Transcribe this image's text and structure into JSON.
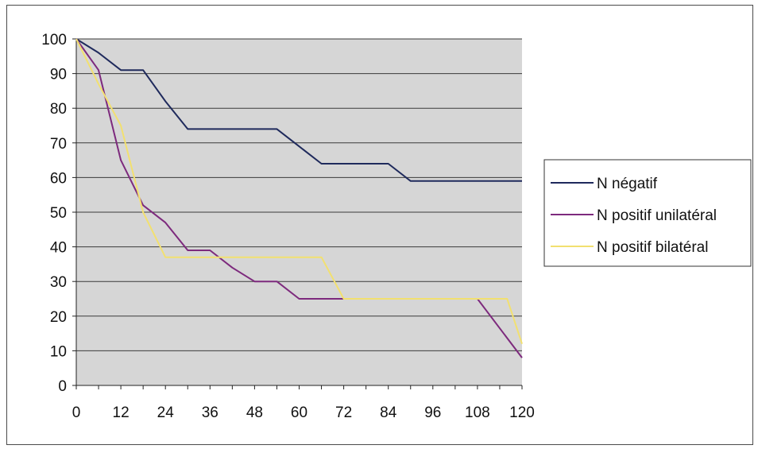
{
  "chart_data": {
    "type": "line",
    "title": "",
    "xlabel": "",
    "ylabel": "",
    "xlim": [
      0,
      120
    ],
    "ylim": [
      0,
      100
    ],
    "x_ticks": [
      "0",
      "12",
      "24",
      "36",
      "48",
      "60",
      "72",
      "84",
      "96",
      "108",
      "120"
    ],
    "y_ticks": [
      "0",
      "10",
      "20",
      "30",
      "40",
      "50",
      "60",
      "70",
      "80",
      "90",
      "100"
    ],
    "grid": "horizontal",
    "legend_position": "right",
    "plot_background": "#d6d6d6",
    "series": [
      {
        "name": "N négatif",
        "color": "#1f2a5c",
        "x": [
          0,
          6,
          12,
          18,
          24,
          30,
          54,
          60,
          66,
          84,
          90,
          120
        ],
        "y": [
          100,
          96,
          91,
          91,
          82,
          74,
          74,
          69,
          64,
          64,
          59,
          59
        ]
      },
      {
        "name": "N positif unilatéral",
        "color": "#7d2a7d",
        "x": [
          0,
          6,
          12,
          18,
          24,
          30,
          36,
          42,
          48,
          54,
          60,
          66,
          72,
          108,
          120
        ],
        "y": [
          100,
          91,
          65,
          52,
          47,
          39,
          39,
          34,
          30,
          30,
          25,
          25,
          25,
          25,
          8
        ]
      },
      {
        "name": "N positif bilatéral",
        "color": "#f2e070",
        "x": [
          0,
          6,
          12,
          18,
          24,
          30,
          66,
          72,
          108,
          116,
          120
        ],
        "y": [
          100,
          87,
          75,
          50,
          37,
          37,
          37,
          25,
          25,
          25,
          12
        ]
      }
    ]
  }
}
